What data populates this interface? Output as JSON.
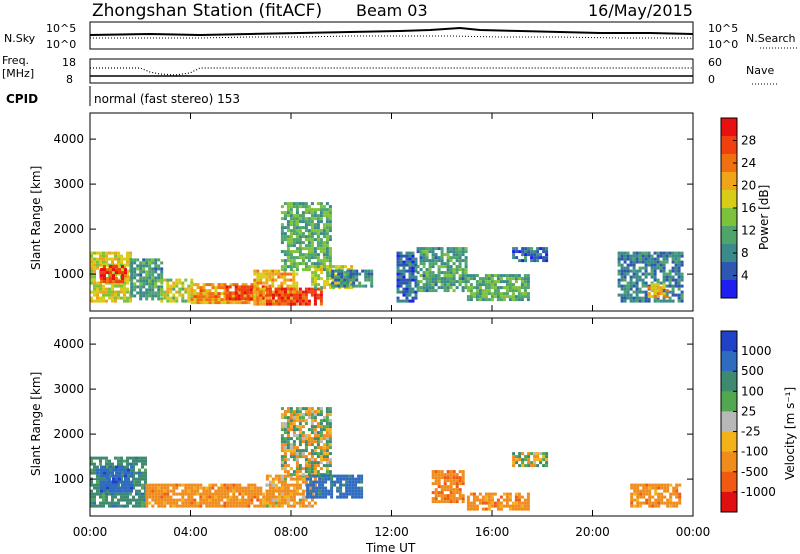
{
  "header": {
    "station": "Zhongshan Station (fitACF)",
    "beam": "Beam 03",
    "date": "16/May/2015"
  },
  "nsky_panel": {
    "left_label": "N.Sky",
    "left_ticks": [
      "10^5",
      "10^0"
    ],
    "right_label": "N.Search",
    "right_ticks": [
      "10^5",
      "10^0"
    ]
  },
  "freq_panel": {
    "left_label_1": "Freq.",
    "left_label_2": "[MHz]",
    "left_ticks": [
      "18",
      "8"
    ],
    "right_label": "Nave",
    "right_ticks": [
      "60",
      "0"
    ]
  },
  "cpid": {
    "label": "CPID",
    "mode": "normal (fast stereo) 153"
  },
  "chart_data": [
    {
      "type": "heatmap",
      "title": "",
      "xlabel": "",
      "ylabel": "Slant Range [km]",
      "x_ticks": [
        "00:00",
        "04:00",
        "08:00",
        "12:00",
        "16:00",
        "20:00",
        "00:00"
      ],
      "xlim_hours": [
        0,
        24
      ],
      "y_ticks": [
        1000,
        2000,
        3000,
        4000
      ],
      "ylim_km": [
        180,
        4580
      ],
      "colorbar": {
        "label": "Power [dB]",
        "ticks": [
          "4",
          "8",
          "12",
          "16",
          "20",
          "24",
          "28"
        ],
        "colors": [
          "#1e1ef0",
          "#2e58b0",
          "#3a8a8a",
          "#4fa46a",
          "#7dc23a",
          "#d8cc18",
          "#f0a418",
          "#f07010",
          "#f04010",
          "#e81010"
        ]
      },
      "regions": [
        {
          "t0": 0.0,
          "t1": 1.6,
          "r0": 400,
          "r1": 1500,
          "value": 18
        },
        {
          "t0": 0.4,
          "t1": 1.4,
          "r0": 800,
          "r1": 1200,
          "value": 28
        },
        {
          "t0": 1.6,
          "t1": 2.8,
          "r0": 450,
          "r1": 1350,
          "value": 10
        },
        {
          "t0": 2.8,
          "t1": 4.0,
          "r0": 400,
          "r1": 900,
          "value": 16
        },
        {
          "t0": 4.0,
          "t1": 6.5,
          "r0": 380,
          "r1": 800,
          "value": 22
        },
        {
          "t0": 5.4,
          "t1": 7.0,
          "r0": 450,
          "r1": 750,
          "value": 28
        },
        {
          "t0": 6.5,
          "t1": 8.2,
          "r0": 300,
          "r1": 1100,
          "value": 20
        },
        {
          "t0": 7.0,
          "t1": 9.2,
          "r0": 350,
          "r1": 700,
          "value": 28
        },
        {
          "t0": 7.6,
          "t1": 9.6,
          "r0": 1100,
          "r1": 2600,
          "value": 12
        },
        {
          "t0": 8.8,
          "t1": 10.4,
          "r0": 700,
          "r1": 1200,
          "value": 16
        },
        {
          "t0": 9.6,
          "t1": 11.2,
          "r0": 700,
          "r1": 1100,
          "value": 8
        },
        {
          "t0": 12.2,
          "t1": 13.0,
          "r0": 400,
          "r1": 1500,
          "value": 6
        },
        {
          "t0": 13.0,
          "t1": 15.0,
          "r0": 600,
          "r1": 1600,
          "value": 10
        },
        {
          "t0": 15.0,
          "t1": 17.5,
          "r0": 400,
          "r1": 1000,
          "value": 12
        },
        {
          "t0": 16.8,
          "t1": 18.2,
          "r0": 1300,
          "r1": 1600,
          "value": 6
        },
        {
          "t0": 21.0,
          "t1": 23.6,
          "r0": 400,
          "r1": 1500,
          "value": 8
        },
        {
          "t0": 22.2,
          "t1": 23.0,
          "r0": 500,
          "r1": 800,
          "value": 20
        }
      ]
    },
    {
      "type": "heatmap",
      "title": "",
      "xlabel": "Time UT",
      "ylabel": "Slant Range [km]",
      "x_ticks": [
        "00:00",
        "04:00",
        "08:00",
        "12:00",
        "16:00",
        "20:00",
        "00:00"
      ],
      "xlim_hours": [
        0,
        24
      ],
      "y_ticks": [
        1000,
        2000,
        3000,
        4000
      ],
      "ylim_km": [
        180,
        4580
      ],
      "colorbar": {
        "label": "Velocity [m s⁻¹]",
        "ticks": [
          "1000",
          "500",
          "100",
          "25",
          "-25",
          "-100",
          "-500",
          "-1000"
        ],
        "colors": [
          "#1f42c8",
          "#2f6cc0",
          "#3e8a70",
          "#52a84e",
          "#b8b8b8",
          "#f4b21a",
          "#f08c1c",
          "#f05a12",
          "#e01010"
        ]
      },
      "regions": [
        {
          "t0": 0.0,
          "t1": 2.2,
          "r0": 400,
          "r1": 1500,
          "value": 300
        },
        {
          "t0": 0.4,
          "t1": 1.6,
          "r0": 700,
          "r1": 1300,
          "value": 800
        },
        {
          "t0": 2.2,
          "t1": 7.0,
          "r0": 380,
          "r1": 900,
          "value": -300
        },
        {
          "t0": 7.0,
          "t1": 9.0,
          "r0": 400,
          "r1": 1100,
          "value": -200
        },
        {
          "t0": 7.6,
          "t1": 9.6,
          "r0": 1100,
          "r1": 2600,
          "value": 0
        },
        {
          "t0": 8.6,
          "t1": 10.8,
          "r0": 600,
          "r1": 1100,
          "value": 700
        },
        {
          "t0": 13.6,
          "t1": 14.8,
          "r0": 500,
          "r1": 1200,
          "value": -400
        },
        {
          "t0": 15.0,
          "t1": 17.5,
          "r0": 300,
          "r1": 700,
          "value": -300
        },
        {
          "t0": 16.8,
          "t1": 18.2,
          "r0": 1300,
          "r1": 1600,
          "value": 0
        },
        {
          "t0": 21.5,
          "t1": 23.5,
          "r0": 400,
          "r1": 900,
          "value": -300
        }
      ]
    }
  ]
}
